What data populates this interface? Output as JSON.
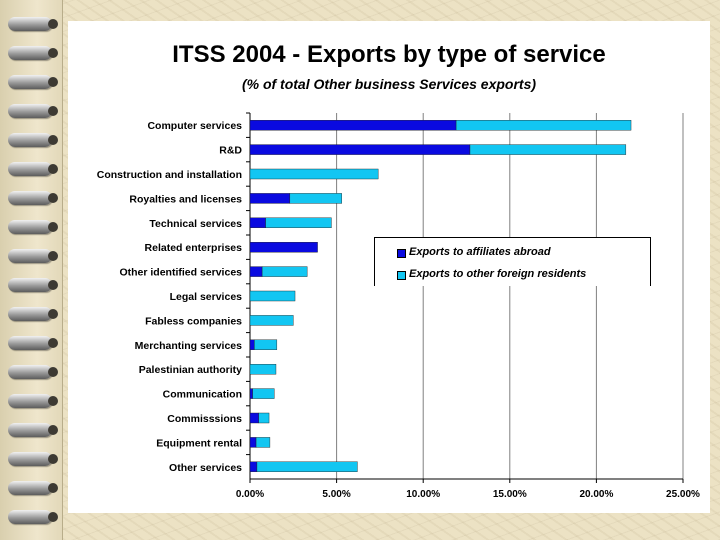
{
  "colors": {
    "affiliates": "#0a0ae0",
    "foreign": "#12c6f2",
    "background": "#ece2c4"
  },
  "chart_data": {
    "type": "bar",
    "orientation": "horizontal",
    "stacked": true,
    "title": "ITSS 2004 - Exports by type of service",
    "subtitle": "(% of total Other business Services exports)",
    "categories": [
      "Computer services",
      "R&D",
      "Construction and installation",
      "Royalties and licenses",
      "Technical services",
      "Related enterprises",
      "Other identified services",
      "Legal services",
      "Fabless companies",
      "Merchanting services",
      "Palestinian authority",
      "Communication",
      "Commisssions",
      "Equipment rental",
      "Other services"
    ],
    "series": [
      {
        "name": "Exports to affiliates abroad",
        "values": [
          11.9,
          12.7,
          0.0,
          2.3,
          0.9,
          3.9,
          0.7,
          0.0,
          0.0,
          0.25,
          0.0,
          0.15,
          0.5,
          0.35,
          0.4
        ]
      },
      {
        "name": "Exports to other foreign residents",
        "values": [
          10.1,
          9.0,
          7.4,
          3.0,
          3.8,
          0.0,
          2.6,
          2.6,
          2.5,
          1.3,
          1.5,
          1.25,
          0.6,
          0.8,
          5.8
        ]
      }
    ],
    "xlim": [
      0,
      25
    ],
    "x_ticks": [
      "0.00%",
      "5.00%",
      "10.00%",
      "15.00%",
      "20.00%",
      "25.00%"
    ],
    "grid": "vertical",
    "legend_position": "right-middle"
  }
}
